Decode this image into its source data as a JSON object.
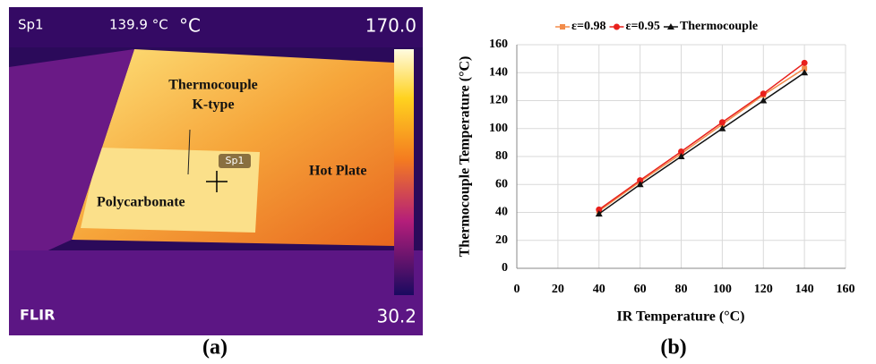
{
  "panel_a": {
    "spot_label": "Sp1",
    "spot_reading": "139.9 °C",
    "unit": "°C",
    "scale_max": "170.0",
    "scale_min": "30.2",
    "brand": "FLIR",
    "annotation_thermocouple": "Thermocouple",
    "annotation_ktype": "K-type",
    "spot_marker": "Sp1",
    "annotation_polycarbonate": "Polycarbonate",
    "annotation_hotplate": "Hot Plate",
    "caption": "(a)"
  },
  "panel_b": {
    "caption": "(b)"
  },
  "chart_data": {
    "type": "line",
    "x_label": "IR Temperature (°C)",
    "y_label": "Thermocouple Temperature (°C)",
    "x": [
      40,
      60,
      80,
      100,
      120,
      140
    ],
    "series": [
      {
        "name": "ε=0.98",
        "color": "#f28c4a",
        "marker": "square",
        "values": [
          41,
          62,
          82,
          103,
          124,
          143
        ]
      },
      {
        "name": "ε=0.95",
        "color": "#e8201c",
        "marker": "circle",
        "values": [
          42,
          63,
          83.5,
          104.5,
          125,
          147
        ]
      },
      {
        "name": "Thermocouple",
        "color": "#111111",
        "marker": "triangle",
        "values": [
          39,
          60,
          80,
          100,
          120,
          140
        ]
      }
    ],
    "xlim": [
      0,
      160
    ],
    "xticks": [
      0,
      20,
      40,
      60,
      80,
      100,
      120,
      140,
      160
    ],
    "ylim": [
      0,
      160
    ],
    "yticks": [
      0,
      20,
      40,
      60,
      80,
      100,
      120,
      140,
      160
    ],
    "grid": true,
    "legend": "top"
  }
}
